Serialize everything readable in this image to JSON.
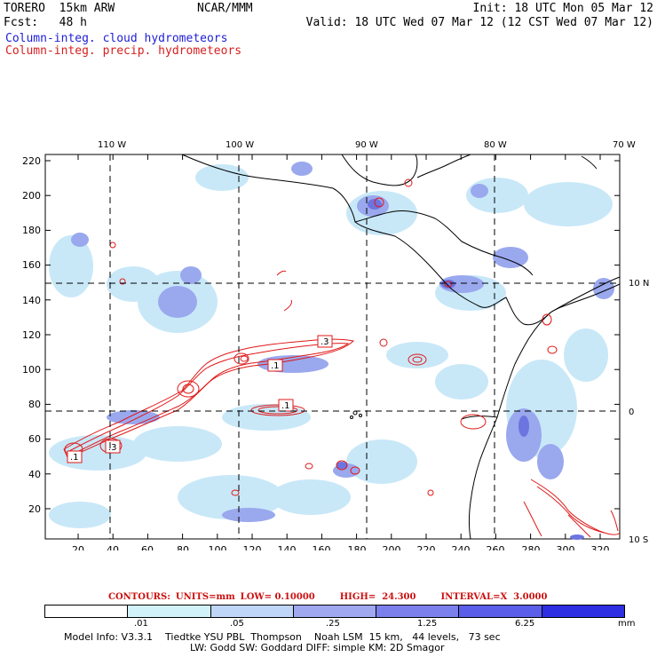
{
  "header": {
    "model": "TORERO  15km ARW",
    "forecast": "Fcst:   48 h",
    "center": "NCAR/MMM",
    "init": "Init: 18 UTC Mon 05 Mar 12",
    "valid": "Valid: 18 UTC Wed 07 Mar 12 (12 CST Wed 07 Mar 12)"
  },
  "legend": {
    "cloud": "Column-integ. cloud hydrometeors",
    "precip": "Column-integ. precip. hydrometeors"
  },
  "map": {
    "top_lon_labels": [
      "110 W",
      "100 W",
      "90 W",
      "80 W",
      "70 W"
    ],
    "right_lat_labels": [
      "10 N",
      "0",
      "10 S"
    ],
    "left_y_labels": [
      "220",
      "200",
      "180",
      "160",
      "140",
      "120",
      "100",
      "80",
      "60",
      "40",
      "20"
    ],
    "bottom_x_labels": [
      "20",
      "40",
      "60",
      "80",
      "100",
      "120",
      "140",
      "160",
      "180",
      "200",
      "220",
      "240",
      "260",
      "280",
      "300",
      "320"
    ],
    "contour_box_labels": [
      ".1",
      ".3",
      ".1",
      ".1",
      ".1",
      ".3"
    ],
    "colors": {
      "cloud_shading": "#c8e8f8",
      "cloud_mid": "#9aa8ee",
      "cloud_dark": "#6c74e0",
      "precip_contour": "#e01818",
      "coast": "#000000",
      "grid": "#000000"
    }
  },
  "contours_info": {
    "label": "CONTOURS:",
    "units": "UNITS=mm",
    "low": "LOW= 0.10000",
    "high": "HIGH=  24.300",
    "interval": "INTERVAL=X  3.0000"
  },
  "colorbar": {
    "ticks": [
      ".01",
      ".05",
      ".25",
      "1.25",
      "6.25"
    ],
    "unit": "mm",
    "colors": [
      "#ffffff",
      "#d2f2fa",
      "#c0d6f8",
      "#a0a8f0",
      "#7c80ec",
      "#5a5ee8",
      "#2e2ee2"
    ]
  },
  "model_info": {
    "line1": "Model Info: V3.3.1    Tiedtke YSU PBL  Thompson    Noah LSM  15 km,   44 levels,   73 sec",
    "line2": "LW: Godd SW: Goddard DIFF: simple KM: 2D Smagor"
  }
}
